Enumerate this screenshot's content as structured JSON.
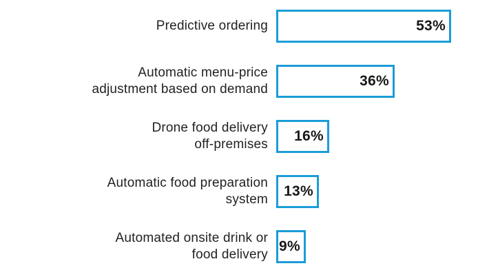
{
  "chart_data": {
    "type": "bar",
    "orientation": "horizontal",
    "title": "",
    "xlabel": "",
    "ylabel": "",
    "categories": [
      "Predictive ordering",
      "Automatic menu-price adjustment based on demand",
      "Drone food delivery off-premises",
      "Automatic food preparation system",
      "Automated onsite drink or food delivery"
    ],
    "values": [
      53,
      36,
      16,
      13,
      9
    ],
    "value_labels": [
      "53%",
      "36%",
      "16%",
      "13%",
      "9%"
    ],
    "unit": "percent",
    "xlim": [
      0,
      53
    ],
    "grid": false,
    "legend": false,
    "bar_fill": "#ffffff",
    "bar_border_color": "#1b9cd8",
    "label_color": "#231f20",
    "value_label_position": "inside-right"
  },
  "rows": [
    {
      "line1": "Predictive ordering",
      "line2": "",
      "value_label": "53%"
    },
    {
      "line1": "Automatic menu-price",
      "line2": "adjustment based on demand",
      "value_label": "36%"
    },
    {
      "line1": "Drone food delivery",
      "line2": "off-premises",
      "value_label": "16%"
    },
    {
      "line1": "Automatic food preparation",
      "line2": "system",
      "value_label": "13%"
    },
    {
      "line1": "Automated onsite drink or",
      "line2": "food delivery",
      "value_label": "9%"
    }
  ]
}
